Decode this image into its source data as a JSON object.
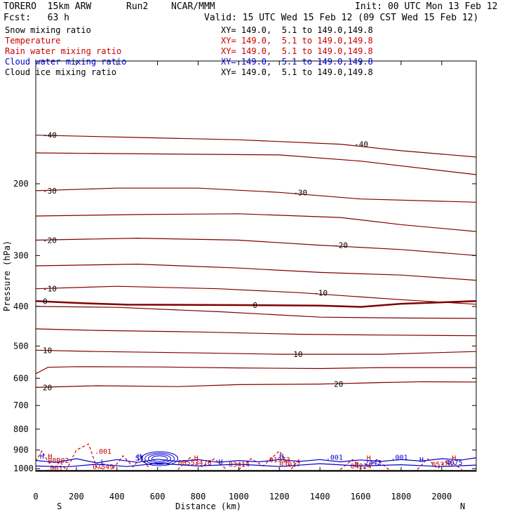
{
  "header": {
    "model": "TORERO  15km ARW",
    "run": "Run2",
    "center": "NCAR/MMM",
    "init": "Init: 00 UTC Mon 13 Feb 12",
    "fcst": "Fcst:   63 h",
    "valid": "Valid: 15 UTC Wed 15 Feb 12 (09 CST Wed 15 Feb 12)"
  },
  "fields": [
    {
      "name": "Snow mixing ratio",
      "xy": "XY= 149.0,  5.1 to 149.0,149.8",
      "color": "#000000"
    },
    {
      "name": "Temperature",
      "xy": "XY= 149.0,  5.1 to 149.0,149.8",
      "color": "#cc0000"
    },
    {
      "name": "Rain water mixing ratio",
      "xy": "XY= 149.0,  5.1 to 149.0,149.8",
      "color": "#cc0000"
    },
    {
      "name": "Cloud water mixing ratio",
      "xy": "XY= 149.0,  5.1 to 149.0,149.8",
      "color": "#0000cc"
    },
    {
      "name": "Cloud ice mixing ratio",
      "xy": "XY= 149.0,  5.1 to 149.0,149.8",
      "color": "#000000"
    }
  ],
  "colors": {
    "temperature": "#800000",
    "temperature_zero": "#800000",
    "rain": "#cc0000",
    "cloud_water": "#0000cc",
    "ground": "#000000"
  },
  "chart_data": {
    "type": "line",
    "title": "",
    "xlabel": "Distance (km)",
    "ylabel": "Pressure (hPa)",
    "xlim": [
      0,
      2170
    ],
    "ylim": [
      1015,
      100
    ],
    "y_scale": "log",
    "x_ticks": [
      0,
      200,
      400,
      600,
      800,
      1000,
      1200,
      1400,
      1600,
      1800,
      2000
    ],
    "y_ticks": [
      200,
      300,
      400,
      500,
      600,
      700,
      800,
      900,
      1000
    ],
    "x_end_labels": {
      "left": "S",
      "right": "N"
    },
    "ground_pressure": 1012,
    "temperature_isotherms": [
      {
        "value": -40,
        "label": "-40",
        "points": [
          [
            0,
            152
          ],
          [
            500,
            154
          ],
          [
            1000,
            156
          ],
          [
            1500,
            160
          ],
          [
            1800,
            166
          ],
          [
            2170,
            172
          ]
        ]
      },
      {
        "value": -35,
        "label": "",
        "points": [
          [
            0,
            168
          ],
          [
            600,
            169
          ],
          [
            1200,
            170
          ],
          [
            1600,
            176
          ],
          [
            2170,
            190
          ]
        ]
      },
      {
        "value": -30,
        "label": "-30",
        "points": [
          [
            0,
            208
          ],
          [
            400,
            205
          ],
          [
            800,
            205
          ],
          [
            1200,
            210
          ],
          [
            1600,
            218
          ],
          [
            2170,
            222
          ]
        ]
      },
      {
        "value": -25,
        "label": "",
        "points": [
          [
            0,
            240
          ],
          [
            500,
            238
          ],
          [
            1000,
            237
          ],
          [
            1500,
            242
          ],
          [
            1800,
            252
          ],
          [
            2170,
            262
          ]
        ]
      },
      {
        "value": -20,
        "label": "-20",
        "points": [
          [
            0,
            275
          ],
          [
            500,
            272
          ],
          [
            1000,
            275
          ],
          [
            1400,
            283
          ],
          [
            1800,
            290
          ],
          [
            2170,
            300
          ]
        ]
      },
      {
        "value": -15,
        "label": "",
        "points": [
          [
            0,
            318
          ],
          [
            500,
            315
          ],
          [
            1000,
            322
          ],
          [
            1400,
            330
          ],
          [
            1800,
            335
          ],
          [
            2170,
            345
          ]
        ]
      },
      {
        "value": -10,
        "label": "-10",
        "points": [
          [
            0,
            362
          ],
          [
            400,
            357
          ],
          [
            900,
            362
          ],
          [
            1300,
            370
          ],
          [
            1800,
            385
          ],
          [
            2170,
            395
          ]
        ]
      },
      {
        "value": -5,
        "label": "",
        "points": [
          [
            0,
            400
          ],
          [
            400,
            402
          ],
          [
            900,
            412
          ],
          [
            1400,
            425
          ],
          [
            1800,
            427
          ],
          [
            2170,
            428
          ]
        ]
      },
      {
        "value": 0,
        "label": "0",
        "points": [
          [
            0,
            388
          ],
          [
            100,
            390
          ],
          [
            250,
            393
          ],
          [
            450,
            396
          ],
          [
            1000,
            397
          ],
          [
            1400,
            398
          ],
          [
            1600,
            401
          ],
          [
            1800,
            394
          ],
          [
            2170,
            388
          ]
        ]
      },
      {
        "value": 5,
        "label": "",
        "points": [
          [
            0,
            454
          ],
          [
            300,
            458
          ],
          [
            800,
            462
          ],
          [
            1300,
            468
          ],
          [
            1700,
            470
          ],
          [
            2170,
            472
          ]
        ]
      },
      {
        "value": 10,
        "label": "10",
        "points": [
          [
            0,
            512
          ],
          [
            300,
            516
          ],
          [
            800,
            520
          ],
          [
            1200,
            524
          ],
          [
            1700,
            524
          ],
          [
            2170,
            516
          ]
        ]
      },
      {
        "value": 15,
        "label": "",
        "points": [
          [
            0,
            585
          ],
          [
            60,
            564
          ],
          [
            200,
            562
          ],
          [
            600,
            563
          ],
          [
            1000,
            566
          ],
          [
            1400,
            568
          ],
          [
            1700,
            565
          ],
          [
            2170,
            565
          ]
        ]
      },
      {
        "value": 20,
        "label": "20",
        "points": [
          [
            0,
            632
          ],
          [
            300,
            626
          ],
          [
            700,
            629
          ],
          [
            1000,
            622
          ],
          [
            1400,
            620
          ],
          [
            1700,
            615
          ],
          [
            1900,
            612
          ],
          [
            2170,
            613
          ]
        ]
      }
    ],
    "rain_label_values": [
      ".001",
      "0B552478",
      "03414",
      "03017",
      "04224",
      "07549",
      "08B02",
      "05326",
      "01953",
      ".001"
    ],
    "cloud_water_label_values": [
      ".001",
      "2442",
      ".001",
      "4075",
      "53"
    ],
    "extrema_markers": [
      "H",
      "H",
      "H",
      "H",
      "H",
      "H",
      "H",
      "H",
      "H",
      "H",
      "L"
    ]
  }
}
